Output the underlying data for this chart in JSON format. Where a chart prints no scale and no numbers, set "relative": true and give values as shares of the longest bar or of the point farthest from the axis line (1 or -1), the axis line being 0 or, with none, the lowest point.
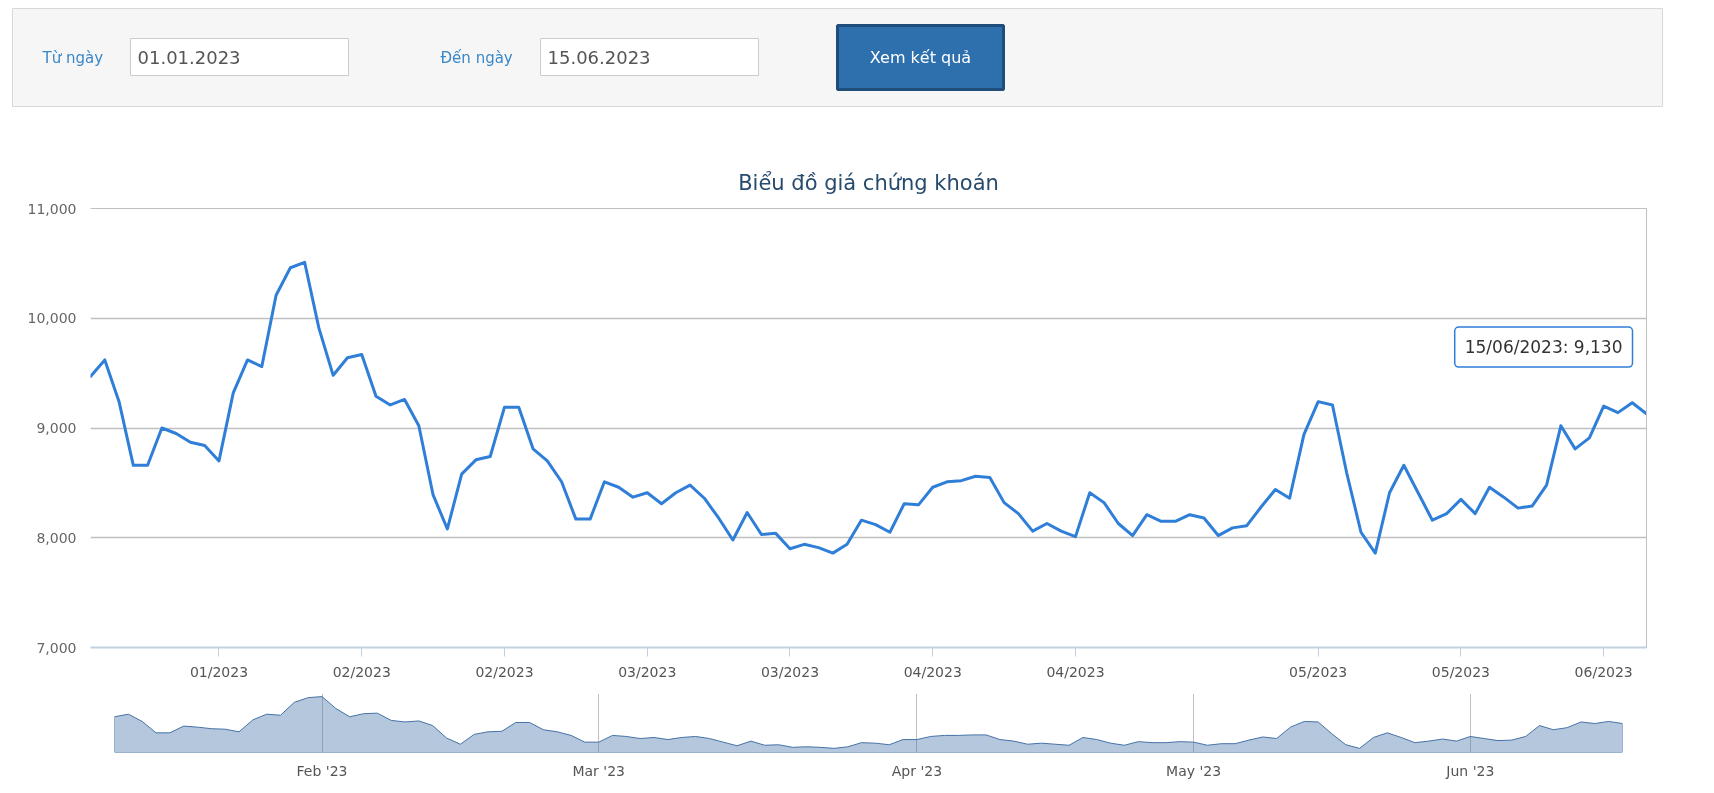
{
  "chart_data": [
    {
      "type": "other",
      "annotations": [
        "Từ ngày",
        "01.01.2023",
        "Đến ngày",
        "15.06.2023",
        "Xem kết quả"
      ]
    },
    {
      "type": "line",
      "title": "Biểu đồ giá chứng khoán",
      "categories": [
        null,
        null,
        null,
        null,
        null,
        null,
        null,
        null,
        null,
        "01/2023",
        null,
        null,
        null,
        null,
        null,
        null,
        null,
        null,
        null,
        "02/2023",
        null,
        null,
        null,
        null,
        null,
        null,
        null,
        null,
        null,
        "02/2023",
        null,
        null,
        null,
        null,
        null,
        null,
        null,
        null,
        null,
        "03/2023",
        null,
        null,
        null,
        null,
        null,
        null,
        null,
        null,
        null,
        "03/2023",
        null,
        null,
        null,
        null,
        null,
        null,
        null,
        null,
        null,
        "04/2023",
        null,
        null,
        null,
        null,
        null,
        null,
        null,
        null,
        null,
        "04/2023",
        null,
        null,
        null,
        null,
        null,
        null,
        null,
        null,
        null,
        null,
        null,
        null,
        null,
        null,
        null,
        null,
        "05/2023",
        null,
        null,
        null,
        null,
        null,
        null,
        null,
        null,
        null,
        "05/2023",
        null,
        null,
        null,
        null,
        null,
        null,
        null,
        null,
        null,
        "06/2023",
        null,
        null,
        null
      ],
      "series": [
        {
          "color": "#2f7ed8",
          "values": [
            9470,
            9620,
            9240,
            8660,
            8660,
            9000,
            8950,
            8870,
            8840,
            8700,
            9320,
            9620,
            9560,
            10210,
            10460,
            10510,
            9910,
            9480,
            9640,
            9670,
            9290,
            9210,
            9260,
            9020,
            8390,
            8080,
            8580,
            8710,
            8740,
            9190,
            9190,
            8810,
            8700,
            8510,
            8170,
            8170,
            8510,
            8460,
            8370,
            8410,
            8310,
            8410,
            8480,
            8360,
            8180,
            7980,
            8230,
            8030,
            8040,
            7900,
            7940,
            7910,
            7860,
            7940,
            8160,
            8120,
            8050,
            8310,
            8300,
            8460,
            8510,
            8520,
            8560,
            8550,
            8320,
            8220,
            8060,
            8130,
            8060,
            8010,
            8410,
            8320,
            8130,
            8020,
            8210,
            8150,
            8150,
            8210,
            8180,
            8020,
            8090,
            8110,
            8280,
            8440,
            8360,
            8940,
            9240,
            9210,
            8590,
            8050,
            7860,
            8410,
            8660,
            8410,
            8160,
            8220,
            8350,
            8220,
            8460,
            8370,
            8270,
            8290,
            8480,
            9020,
            8810,
            8910,
            9200,
            9140,
            9230,
            9130
          ]
        }
      ],
      "ylim": [
        7000,
        11000
      ],
      "yticks": [
        {
          "value": 7000,
          "label": "7,000"
        },
        {
          "value": 8000,
          "label": "8,000"
        },
        {
          "value": 9000,
          "label": "9,000"
        },
        {
          "value": 10000,
          "label": "10,000"
        },
        {
          "value": 11000,
          "label": "11,000"
        }
      ],
      "grid": "y",
      "annotations": [
        "15/06/2023: 9,130"
      ]
    },
    {
      "type": "area",
      "relative": true,
      "categories": [
        null,
        null,
        null,
        null,
        null,
        null,
        null,
        null,
        null,
        null,
        null,
        null,
        null,
        null,
        null,
        "Feb '23",
        null,
        null,
        null,
        null,
        null,
        null,
        null,
        null,
        null,
        null,
        null,
        null,
        null,
        null,
        null,
        null,
        null,
        null,
        null,
        "Mar '23",
        null,
        null,
        null,
        null,
        null,
        null,
        null,
        null,
        null,
        null,
        null,
        null,
        null,
        null,
        null,
        null,
        null,
        null,
        null,
        null,
        null,
        null,
        "Apr '23",
        null,
        null,
        null,
        null,
        null,
        null,
        null,
        null,
        null,
        null,
        null,
        null,
        null,
        null,
        null,
        null,
        null,
        null,
        null,
        "May '23",
        null,
        null,
        null,
        null,
        null,
        null,
        null,
        null,
        null,
        null,
        null,
        null,
        null,
        null,
        null,
        null,
        null,
        null,
        null,
        "Jun '23",
        null,
        null,
        null,
        null,
        null,
        null,
        null,
        null,
        null,
        null,
        null
      ],
      "series": [
        {
          "color": "#4572a7",
          "values": [
            0.61,
            0.66,
            0.52,
            0.3,
            0.3,
            0.43,
            0.41,
            0.38,
            0.37,
            0.32,
            0.55,
            0.66,
            0.64,
            0.89,
            0.98,
            1,
            0.77,
            0.61,
            0.67,
            0.68,
            0.54,
            0.51,
            0.53,
            0.44,
            0.2,
            0.08,
            0.27,
            0.32,
            0.33,
            0.5,
            0.5,
            0.36,
            0.32,
            0.25,
            0.12,
            0.12,
            0.25,
            0.23,
            0.19,
            0.21,
            0.17,
            0.21,
            0.23,
            0.19,
            0.12,
            0.05,
            0.14,
            0.06,
            0.07,
            0.02,
            0.03,
            0.02,
            0,
            0.03,
            0.11,
            0.1,
            0.07,
            0.17,
            0.17,
            0.23,
            0.25,
            0.25,
            0.26,
            0.26,
            0.17,
            0.14,
            0.08,
            0.1,
            0.08,
            0.06,
            0.21,
            0.17,
            0.1,
            0.06,
            0.13,
            0.11,
            0.11,
            0.13,
            0.12,
            0.06,
            0.09,
            0.09,
            0.16,
            0.22,
            0.19,
            0.41,
            0.52,
            0.51,
            0.28,
            0.07,
            0,
            0.21,
            0.3,
            0.21,
            0.11,
            0.14,
            0.18,
            0.14,
            0.23,
            0.19,
            0.15,
            0.16,
            0.23,
            0.44,
            0.36,
            0.4,
            0.51,
            0.48,
            0.52,
            0.48
          ]
        }
      ],
      "grid": "x"
    }
  ]
}
